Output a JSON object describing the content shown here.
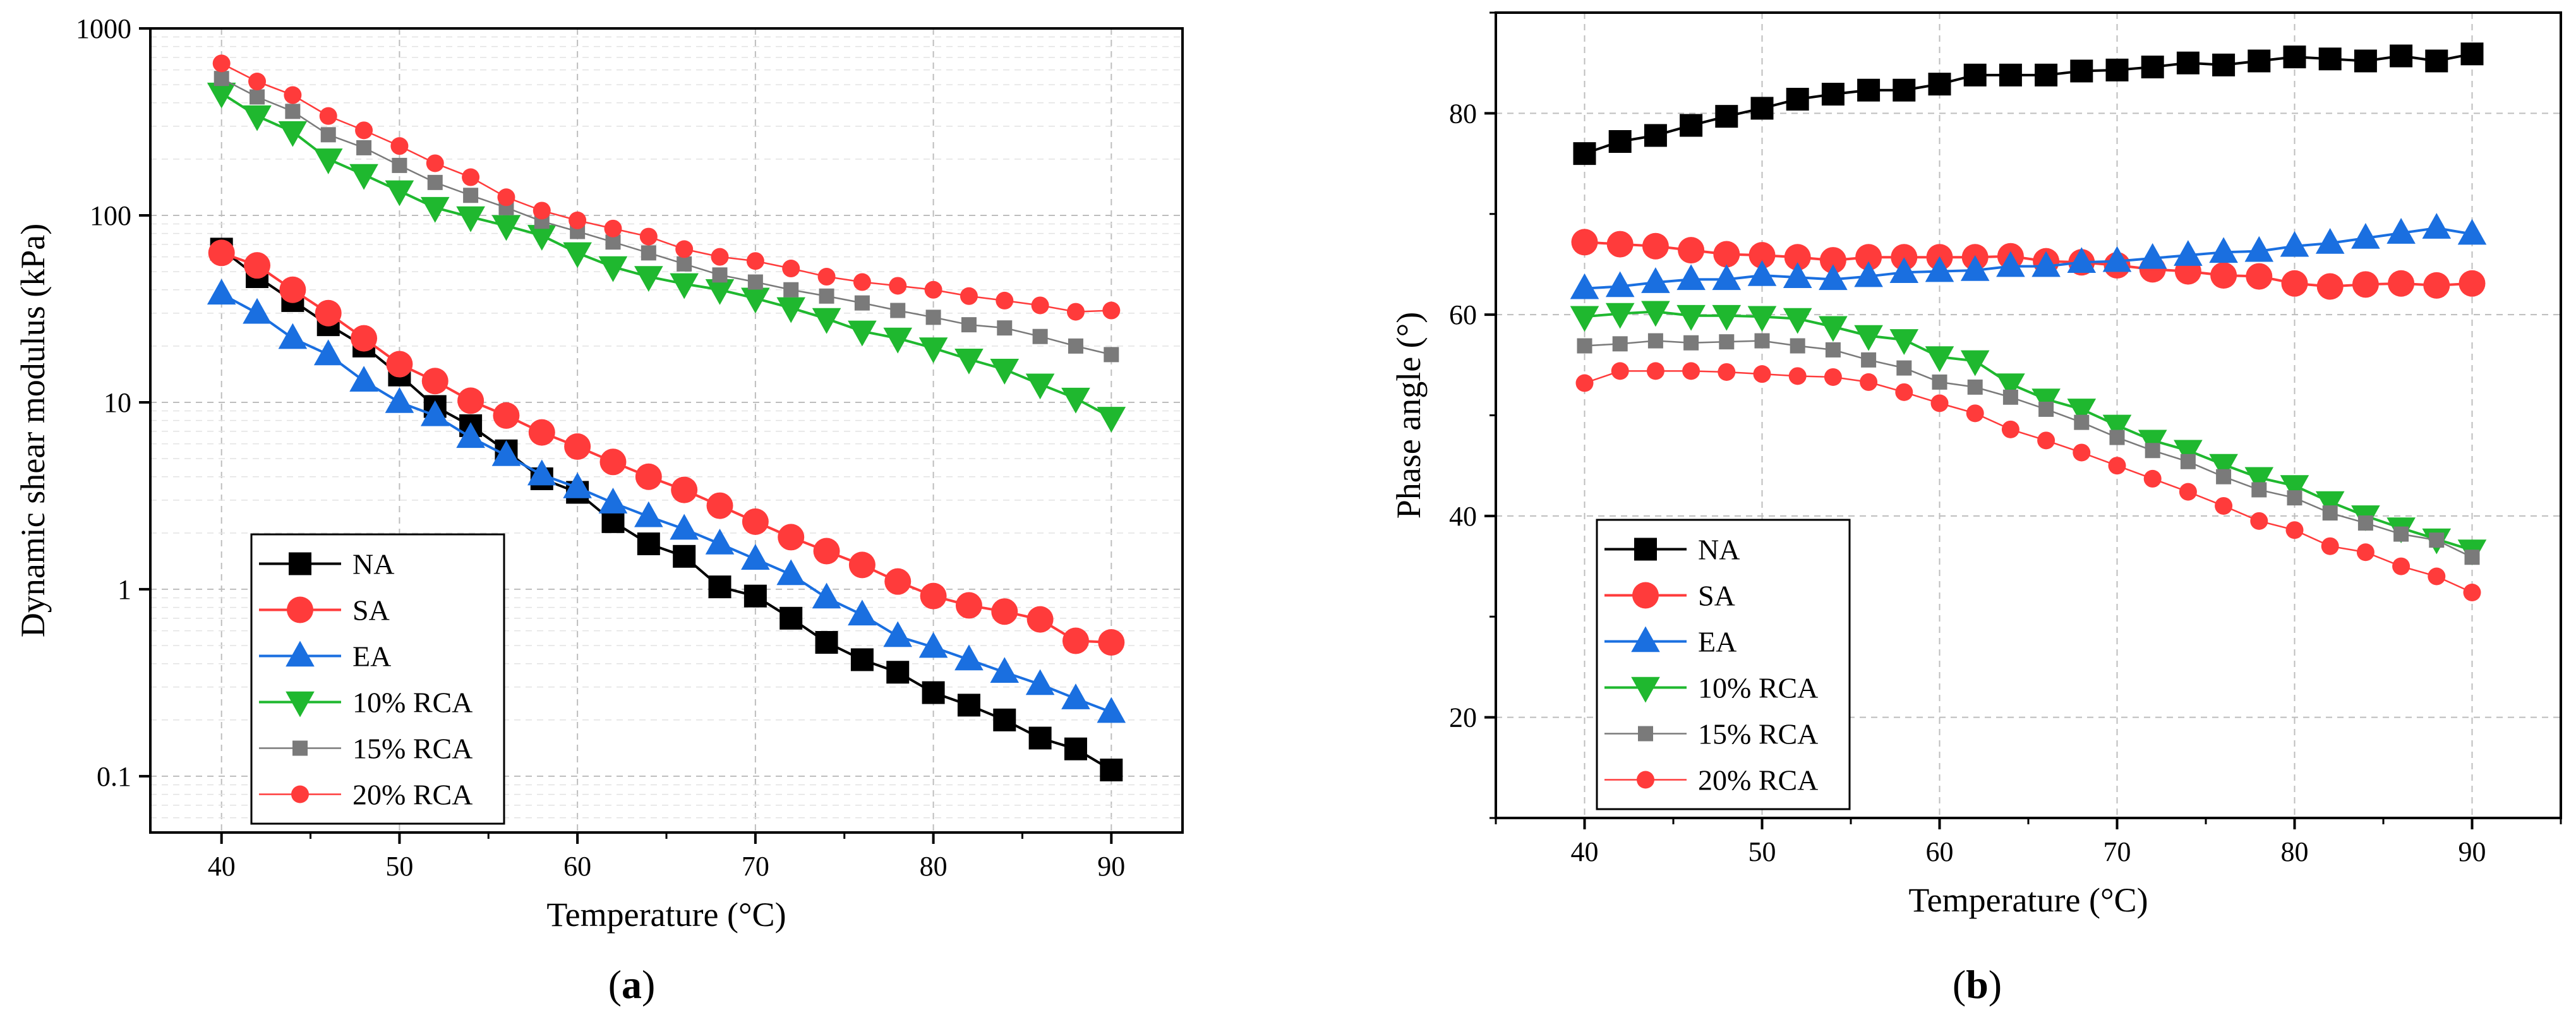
{
  "figure": {
    "panel_a_label_open": "(",
    "panel_a_label_letter": "a",
    "panel_a_label_close": ")",
    "panel_b_label_open": "(",
    "panel_b_label_letter": "b",
    "panel_b_label_close": ")"
  },
  "legend_styles": {
    "NA": {
      "color": "#000000",
      "marker": "square",
      "line_width": "thick"
    },
    "SA": {
      "color": "#ff3b3b",
      "marker": "circle",
      "line_width": "thick"
    },
    "EA": {
      "color": "#1a6fe0",
      "marker": "triangle-up",
      "line_width": "thick"
    },
    "10% RCA": {
      "color": "#1fb82f",
      "marker": "triangle-down",
      "line_width": "thick"
    },
    "15% RCA": {
      "color": "#7a7a7a",
      "marker": "small-square",
      "line_width": "thin"
    },
    "20% RCA": {
      "color": "#ff3b3b",
      "marker": "small-circle",
      "line_width": "thin"
    }
  },
  "chart_data": [
    {
      "type": "line",
      "panel": "a",
      "title": "",
      "xlabel": "Temperature (°C)",
      "ylabel": "Dynamic shear modulus (kPa)",
      "yscale": "log",
      "xlim": [
        36,
        94
      ],
      "ylim": [
        0.05,
        1000
      ],
      "xticks": [
        40,
        50,
        60,
        70,
        80,
        90
      ],
      "yticks": [
        0.1,
        1,
        10,
        100,
        1000
      ],
      "ytick_labels": [
        "0.1",
        "1",
        "10",
        "100",
        "1000"
      ],
      "grid": true,
      "legend_position": "bottom-left",
      "x": [
        40,
        42,
        44,
        46,
        48,
        50,
        52,
        54,
        56,
        58,
        60,
        62,
        64,
        66,
        68,
        70,
        72,
        74,
        76,
        78,
        80,
        82,
        84,
        86,
        88,
        90
      ],
      "series": [
        {
          "name": "NA",
          "values": [
            66,
            47,
            35,
            26,
            20,
            14,
            9.5,
            7.5,
            5.5,
            3.9,
            3.3,
            2.3,
            1.75,
            1.5,
            1.03,
            0.92,
            0.7,
            0.52,
            0.42,
            0.36,
            0.28,
            0.24,
            0.2,
            0.16,
            0.14,
            0.108
          ]
        },
        {
          "name": "SA",
          "values": [
            63,
            54,
            40,
            30,
            22,
            16,
            13,
            10.2,
            8.5,
            6.9,
            5.8,
            4.8,
            4.0,
            3.4,
            2.8,
            2.3,
            1.9,
            1.6,
            1.35,
            1.1,
            0.92,
            0.82,
            0.76,
            0.69,
            0.53,
            0.52
          ]
        },
        {
          "name": "EA",
          "values": [
            38,
            30,
            22,
            18,
            13,
            10,
            8.5,
            6.5,
            5.2,
            4.1,
            3.5,
            2.9,
            2.45,
            2.1,
            1.75,
            1.45,
            1.2,
            0.9,
            0.73,
            0.56,
            0.49,
            0.42,
            0.36,
            0.31,
            0.26,
            0.22
          ]
        },
        {
          "name": "10% RCA",
          "values": [
            450,
            340,
            280,
            200,
            165,
            135,
            110,
            98,
            88,
            78,
            63,
            53,
            47,
            43,
            40,
            36,
            32,
            28,
            24,
            22,
            19.5,
            17,
            15,
            12.5,
            10.5,
            8.3
          ]
        },
        {
          "name": "15% RCA",
          "values": [
            540,
            430,
            360,
            270,
            230,
            185,
            150,
            128,
            110,
            93,
            82,
            72,
            63,
            55,
            48,
            44,
            40,
            37,
            34,
            31,
            28.5,
            26,
            25,
            22.5,
            20,
            18
          ]
        },
        {
          "name": "20% RCA",
          "values": [
            650,
            520,
            440,
            340,
            285,
            235,
            190,
            160,
            125,
            106,
            94,
            85,
            77,
            66,
            60,
            57,
            52,
            47,
            44,
            42,
            40,
            37,
            35,
            33,
            30.5,
            31
          ]
        }
      ]
    },
    {
      "type": "line",
      "panel": "b",
      "title": "",
      "xlabel": "Temperature (°C)",
      "ylabel": "Phase angle (°)",
      "yscale": "linear",
      "xlim": [
        35,
        95
      ],
      "ylim": [
        10,
        90
      ],
      "xticks": [
        40,
        50,
        60,
        70,
        80,
        90
      ],
      "yticks": [
        20,
        40,
        60,
        80
      ],
      "grid": true,
      "legend_position": "bottom-left",
      "x": [
        40,
        42,
        44,
        46,
        48,
        50,
        52,
        54,
        56,
        58,
        60,
        62,
        64,
        66,
        68,
        70,
        72,
        74,
        76,
        78,
        80,
        82,
        84,
        86,
        88,
        90
      ],
      "series": [
        {
          "name": "NA",
          "values": [
            76,
            77.2,
            77.8,
            78.8,
            79.7,
            80.5,
            81.4,
            81.9,
            82.3,
            82.3,
            82.9,
            83.8,
            83.8,
            83.8,
            84.2,
            84.3,
            84.6,
            85.0,
            84.8,
            85.2,
            85.6,
            85.4,
            85.2,
            85.7,
            85.2,
            85.9
          ]
        },
        {
          "name": "SA",
          "values": [
            67.2,
            67.0,
            66.8,
            66.4,
            66.0,
            65.9,
            65.7,
            65.4,
            65.7,
            65.7,
            65.7,
            65.7,
            65.8,
            65.3,
            65.2,
            64.9,
            64.5,
            64.3,
            63.9,
            63.8,
            63.1,
            62.8,
            63.0,
            63.1,
            62.9,
            63.1
          ]
        },
        {
          "name": "EA",
          "values": [
            62.6,
            62.8,
            63.2,
            63.5,
            63.5,
            63.9,
            63.7,
            63.5,
            63.8,
            64.2,
            64.3,
            64.4,
            64.8,
            64.8,
            65.2,
            65.3,
            65.6,
            65.9,
            66.2,
            66.3,
            66.8,
            67.1,
            67.6,
            68.1,
            68.6,
            68.0
          ]
        },
        {
          "name": "10% RCA",
          "values": [
            59.8,
            60.1,
            60.3,
            59.9,
            59.9,
            59.8,
            59.6,
            58.8,
            57.9,
            57.5,
            55.8,
            55.4,
            53.1,
            51.6,
            50.6,
            49.0,
            47.5,
            46.5,
            45.1,
            43.8,
            43.0,
            41.4,
            40.0,
            38.8,
            37.7,
            36.6
          ]
        },
        {
          "name": "15% RCA",
          "values": [
            56.9,
            57.1,
            57.4,
            57.2,
            57.3,
            57.4,
            56.9,
            56.5,
            55.5,
            54.7,
            53.3,
            52.8,
            51.8,
            50.6,
            49.3,
            47.8,
            46.5,
            45.4,
            43.9,
            42.6,
            41.8,
            40.3,
            39.3,
            38.2,
            37.6,
            35.9
          ]
        },
        {
          "name": "20% RCA",
          "values": [
            53.2,
            54.4,
            54.4,
            54.4,
            54.3,
            54.1,
            53.9,
            53.8,
            53.3,
            52.3,
            51.2,
            50.2,
            48.6,
            47.5,
            46.3,
            45.0,
            43.7,
            42.4,
            41.0,
            39.5,
            38.6,
            37.0,
            36.4,
            35.0,
            34.0,
            32.4
          ]
        }
      ]
    }
  ]
}
